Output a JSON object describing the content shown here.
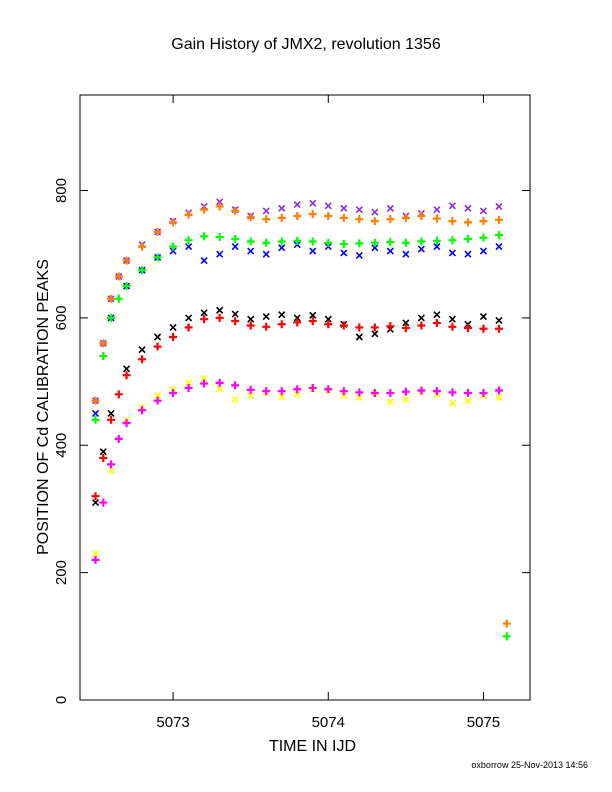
{
  "chart_data": {
    "type": "scatter",
    "title": "Gain History of JMX2, revolution 1356",
    "xlabel": "TIME IN IJD",
    "ylabel": "POSITION OF Cd CALIBRATION PEAKS",
    "xlim": [
      5072.4,
      5075.3
    ],
    "ylim": [
      0,
      950
    ],
    "x_ticks": [
      5073,
      5074,
      5075
    ],
    "x_tick_labels": [
      "5073",
      "5074",
      "5075"
    ],
    "y_ticks": [
      0,
      200,
      400,
      600,
      800
    ],
    "y_tick_labels": [
      "0",
      "200",
      "400",
      "600",
      "800"
    ],
    "grid": false,
    "series": [
      {
        "marker": "x",
        "color": "#8a2be2",
        "x": [
          5072.5,
          5072.55,
          5072.6,
          5072.65,
          5072.7,
          5072.8,
          5072.9,
          5073.0,
          5073.1,
          5073.2,
          5073.3,
          5073.4,
          5073.5,
          5073.6,
          5073.7,
          5073.8,
          5073.9,
          5074.0,
          5074.1,
          5074.2,
          5074.3,
          5074.4,
          5074.5,
          5074.6,
          5074.7,
          5074.8,
          5074.9,
          5075.0,
          5075.1
        ],
        "y": [
          470,
          560,
          630,
          665,
          690,
          715,
          735,
          752,
          765,
          775,
          782,
          770,
          760,
          768,
          772,
          778,
          780,
          776,
          772,
          770,
          766,
          772,
          760,
          764,
          770,
          776,
          772,
          768,
          775
        ]
      },
      {
        "marker": "x",
        "color": "#0000ff",
        "x": [
          5072.5,
          5072.6,
          5072.7,
          5072.8,
          5072.9,
          5073.0,
          5073.1,
          5073.2,
          5073.3,
          5073.4,
          5073.5,
          5073.6,
          5073.7,
          5073.8,
          5073.9,
          5074.0,
          5074.1,
          5074.2,
          5074.3,
          5074.4,
          5074.5,
          5074.6,
          5074.7,
          5074.8,
          5074.9,
          5075.0,
          5075.1
        ],
        "y": [
          450,
          600,
          650,
          675,
          695,
          705,
          712,
          690,
          700,
          712,
          705,
          700,
          710,
          715,
          705,
          712,
          702,
          698,
          710,
          705,
          700,
          708,
          712,
          702,
          700,
          705,
          712
        ]
      },
      {
        "marker": "x",
        "color": "#000000",
        "x": [
          5072.5,
          5072.55,
          5072.6,
          5072.7,
          5072.8,
          5072.9,
          5073.0,
          5073.1,
          5073.2,
          5073.3,
          5073.4,
          5073.5,
          5073.6,
          5073.7,
          5073.8,
          5073.9,
          5074.0,
          5074.1,
          5074.2,
          5074.3,
          5074.4,
          5074.5,
          5074.6,
          5074.7,
          5074.8,
          5074.9,
          5075.0,
          5075.1
        ],
        "y": [
          310,
          390,
          450,
          520,
          550,
          570,
          585,
          600,
          608,
          612,
          606,
          598,
          602,
          605,
          600,
          604,
          598,
          590,
          570,
          575,
          582,
          592,
          600,
          605,
          598,
          590,
          602,
          596
        ]
      },
      {
        "marker": "x",
        "color": "#ffff00",
        "x": [
          5072.5,
          5072.6,
          5072.7,
          5072.8,
          5072.9,
          5073.0,
          5073.1,
          5073.2,
          5073.3,
          5073.4,
          5073.5,
          5073.6,
          5073.7,
          5073.8,
          5073.9,
          5074.0,
          5074.1,
          5074.2,
          5074.3,
          5074.4,
          5074.5,
          5074.6,
          5074.7,
          5074.8,
          5074.9,
          5075.0,
          5075.1
        ],
        "y": [
          230,
          360,
          440,
          460,
          478,
          488,
          498,
          505,
          488,
          472,
          478,
          482,
          476,
          480,
          488,
          486,
          478,
          475,
          482,
          468,
          472,
          484,
          480,
          466,
          470,
          478,
          475
        ]
      },
      {
        "marker": "+",
        "color": "#ff7f00",
        "x": [
          5072.5,
          5072.55,
          5072.6,
          5072.65,
          5072.7,
          5072.8,
          5072.9,
          5073.0,
          5073.1,
          5073.2,
          5073.3,
          5073.4,
          5073.5,
          5073.6,
          5073.7,
          5073.8,
          5073.9,
          5074.0,
          5074.1,
          5074.2,
          5074.3,
          5074.4,
          5074.5,
          5074.6,
          5074.7,
          5074.8,
          5074.9,
          5075.0,
          5075.1,
          5075.15
        ],
        "y": [
          470,
          560,
          630,
          665,
          690,
          712,
          735,
          750,
          762,
          770,
          775,
          768,
          758,
          755,
          757,
          760,
          763,
          760,
          757,
          755,
          752,
          755,
          757,
          760,
          756,
          752,
          750,
          752,
          754,
          120
        ]
      },
      {
        "marker": "+",
        "color": "#00ff00",
        "x": [
          5072.5,
          5072.55,
          5072.6,
          5072.65,
          5072.7,
          5072.8,
          5072.9,
          5073.0,
          5073.1,
          5073.2,
          5073.3,
          5073.4,
          5073.5,
          5073.6,
          5073.7,
          5073.8,
          5073.9,
          5074.0,
          5074.1,
          5074.2,
          5074.3,
          5074.4,
          5074.5,
          5074.6,
          5074.7,
          5074.8,
          5074.9,
          5075.0,
          5075.1,
          5075.15
        ],
        "y": [
          440,
          540,
          600,
          630,
          650,
          675,
          695,
          712,
          722,
          728,
          727,
          724,
          720,
          718,
          720,
          721,
          720,
          718,
          716,
          717,
          718,
          719,
          718,
          720,
          721,
          722,
          724,
          726,
          730,
          100
        ]
      },
      {
        "marker": "+",
        "color": "#ff0000",
        "x": [
          5072.5,
          5072.55,
          5072.6,
          5072.65,
          5072.7,
          5072.8,
          5072.9,
          5073.0,
          5073.1,
          5073.2,
          5073.3,
          5073.4,
          5073.5,
          5073.6,
          5073.7,
          5073.8,
          5073.9,
          5074.0,
          5074.1,
          5074.2,
          5074.3,
          5074.4,
          5074.5,
          5074.6,
          5074.7,
          5074.8,
          5074.9,
          5075.0,
          5075.1
        ],
        "y": [
          320,
          380,
          440,
          480,
          510,
          535,
          555,
          570,
          585,
          598,
          600,
          595,
          588,
          586,
          590,
          593,
          595,
          590,
          588,
          585,
          585,
          587,
          584,
          588,
          592,
          586,
          584,
          583,
          583
        ]
      },
      {
        "marker": "+",
        "color": "#ff00ff",
        "x": [
          5072.5,
          5072.55,
          5072.6,
          5072.65,
          5072.7,
          5072.8,
          5072.9,
          5073.0,
          5073.1,
          5073.2,
          5073.3,
          5073.4,
          5073.5,
          5073.6,
          5073.7,
          5073.8,
          5073.9,
          5074.0,
          5074.1,
          5074.2,
          5074.3,
          5074.4,
          5074.5,
          5074.6,
          5074.7,
          5074.8,
          5074.9,
          5075.0,
          5075.1
        ],
        "y": [
          220,
          310,
          370,
          410,
          435,
          455,
          470,
          482,
          490,
          497,
          498,
          494,
          487,
          485,
          485,
          488,
          490,
          488,
          485,
          483,
          482,
          482,
          484,
          486,
          485,
          483,
          482,
          482,
          486
        ]
      }
    ]
  },
  "footer": "oxborrow 25-Nov-2013 14:56"
}
